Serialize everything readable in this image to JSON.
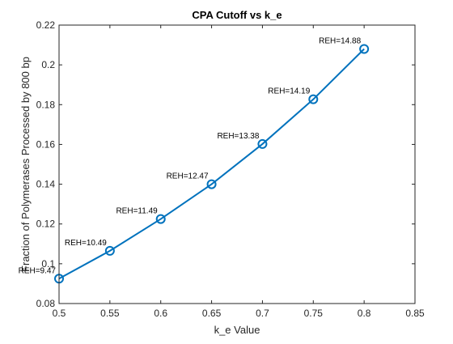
{
  "chart_data": {
    "type": "line",
    "title": "CPA Cutoff vs k_e",
    "xlabel": "k_e Value",
    "ylabel": "Fraction of Polymerases Processed by 800 bp",
    "xlim": [
      0.5,
      0.85
    ],
    "ylim": [
      0.08,
      0.22
    ],
    "xticks": [
      "0.5",
      "0.55",
      "0.6",
      "0.65",
      "0.7",
      "0.75",
      "0.8",
      "0.85"
    ],
    "yticks": [
      "0.08",
      "0.1",
      "0.12",
      "0.14",
      "0.16",
      "0.18",
      "0.2",
      "0.22"
    ],
    "grid": false,
    "series": [
      {
        "color": "#0072BD",
        "marker": "circle",
        "x": [
          0.5,
          0.55,
          0.6,
          0.65,
          0.7,
          0.75,
          0.8
        ],
        "y": [
          0.0925,
          0.1065,
          0.1225,
          0.14,
          0.1602,
          0.1827,
          0.208
        ],
        "labels": [
          "REH=9.47",
          "REH=10.49",
          "REH=11.49",
          "REH=12.47",
          "REH=13.38",
          "REH=14.19",
          "REH=14.88"
        ]
      }
    ]
  }
}
